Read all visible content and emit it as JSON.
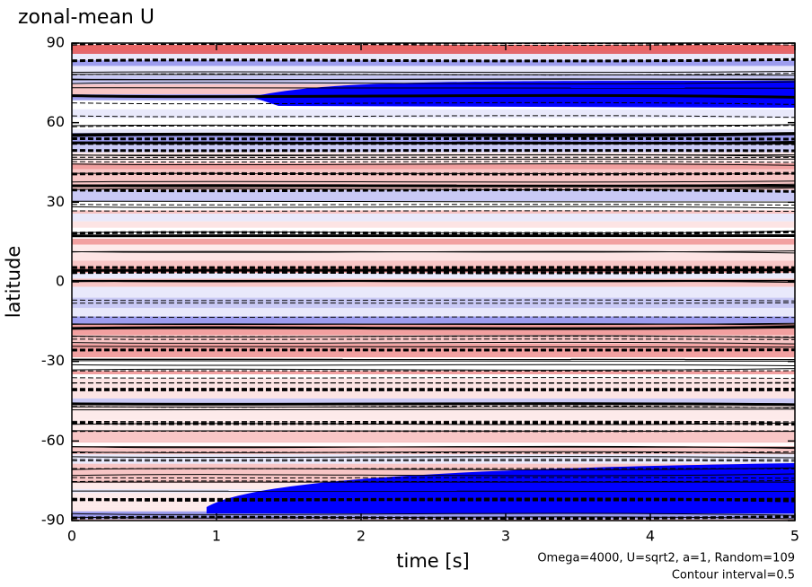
{
  "chart_data": {
    "type": "contour",
    "title": "zonal-mean U",
    "x_label": "time [s]",
    "y_label": "latitude",
    "annotations": [
      "Omega=4000, U=sqrt2, a=1, Random=109",
      "Contour interval=0.5"
    ],
    "xlim": [
      0,
      5
    ],
    "xticks": [
      0,
      1,
      2,
      3,
      4,
      5
    ],
    "ylim": [
      -90,
      90
    ],
    "yticks": [
      -90,
      -60,
      -30,
      0,
      30,
      60,
      90
    ]
  }
}
